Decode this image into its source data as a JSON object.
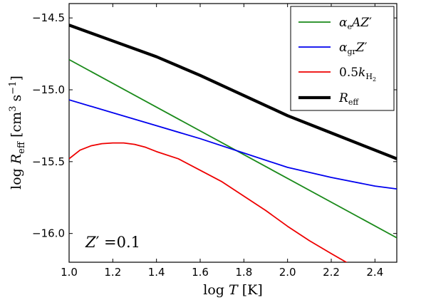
{
  "chart_data": {
    "type": "line",
    "xlabel": "log T [K]",
    "ylabel": "log R_eff [cm^3 s^-1]",
    "xlim": [
      1.0,
      2.5
    ],
    "ylim": [
      -16.2,
      -14.4
    ],
    "xticks": [
      "1.0",
      "1.2",
      "1.4",
      "1.6",
      "1.8",
      "2.0",
      "2.2",
      "2.4"
    ],
    "yticks": [
      "−14.5",
      "−15.0",
      "−15.5",
      "−16.0"
    ],
    "grid": false,
    "legend_position": "top-right",
    "annotation": "Z′ =0.1",
    "series": [
      {
        "name": "α_e A Z′",
        "color": "#1a8a1a",
        "x": [
          1.0,
          2.5
        ],
        "y": [
          -14.79,
          -16.03
        ]
      },
      {
        "name": "α_gr Z′",
        "color": "#0000ee",
        "x": [
          1.0,
          1.2,
          1.4,
          1.6,
          1.8,
          2.0,
          2.2,
          2.4,
          2.5
        ],
        "y": [
          -15.07,
          -15.16,
          -15.25,
          -15.34,
          -15.44,
          -15.54,
          -15.61,
          -15.67,
          -15.69
        ]
      },
      {
        "name": "0.5k_H2",
        "color": "#ee0000",
        "x": [
          1.0,
          1.05,
          1.1,
          1.15,
          1.2,
          1.25,
          1.3,
          1.35,
          1.4,
          1.5,
          1.6,
          1.7,
          1.8,
          1.9,
          2.0,
          2.1,
          2.2,
          2.28
        ],
        "y": [
          -15.48,
          -15.42,
          -15.39,
          -15.375,
          -15.37,
          -15.37,
          -15.38,
          -15.4,
          -15.43,
          -15.48,
          -15.56,
          -15.64,
          -15.74,
          -15.84,
          -15.95,
          -16.05,
          -16.14,
          -16.21
        ]
      },
      {
        "name": "R_eff",
        "color": "#000000",
        "x": [
          1.0,
          1.2,
          1.4,
          1.6,
          1.8,
          2.0,
          2.2,
          2.4,
          2.5
        ],
        "y": [
          -14.55,
          -14.66,
          -14.77,
          -14.9,
          -15.04,
          -15.18,
          -15.3,
          -15.42,
          -15.48
        ]
      }
    ]
  }
}
